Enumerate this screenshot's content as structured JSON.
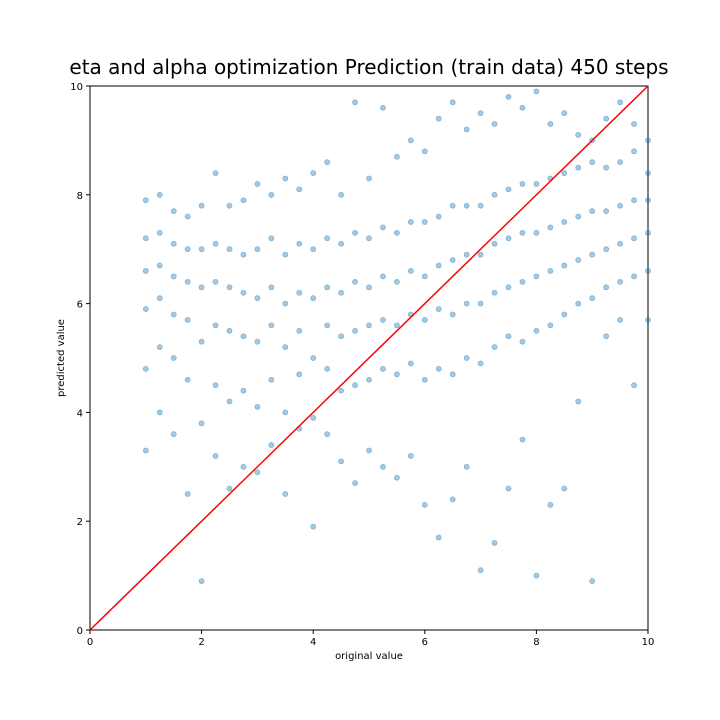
{
  "chart_data": {
    "type": "scatter",
    "title": "eta and alpha optimization Prediction (train data) 450 steps",
    "x_label": "original value",
    "y_label": "predicted value",
    "xlim": [
      0,
      10
    ],
    "ylim": [
      0,
      10
    ],
    "xticks": [
      0,
      2,
      4,
      6,
      8,
      10
    ],
    "yticks": [
      0,
      2,
      4,
      6,
      8,
      10
    ],
    "series": [
      {
        "type": "scatter",
        "color": "#1f77b4",
        "x": [
          1,
          1,
          1,
          1,
          1,
          1,
          1.25,
          1.25,
          1.25,
          1.25,
          1.25,
          1.25,
          1.5,
          1.5,
          1.5,
          1.5,
          1.5,
          1.5,
          1.75,
          1.75,
          1.75,
          1.75,
          1.75,
          1.75,
          2,
          2,
          2,
          2,
          2,
          2,
          2.25,
          2.25,
          2.25,
          2.25,
          2.25,
          2.25,
          2.5,
          2.5,
          2.5,
          2.5,
          2.5,
          2.5,
          2.75,
          2.75,
          2.75,
          2.75,
          2.75,
          2.75,
          3,
          3,
          3,
          3,
          3,
          3,
          3.25,
          3.25,
          3.25,
          3.25,
          3.25,
          3.25,
          3.5,
          3.5,
          3.5,
          3.5,
          3.5,
          3.5,
          3.75,
          3.75,
          3.75,
          3.75,
          3.75,
          3.75,
          4,
          4,
          4,
          4,
          4,
          4,
          4.25,
          4.25,
          4.25,
          4.25,
          4.25,
          4.25,
          4.5,
          4.5,
          4.5,
          4.5,
          4.5,
          4.5,
          4.75,
          4.75,
          4.75,
          4.75,
          4.75,
          4.75,
          5,
          5,
          5,
          5,
          5,
          5,
          5.25,
          5.25,
          5.25,
          5.25,
          5.25,
          5.25,
          5.5,
          5.5,
          5.5,
          5.5,
          5.5,
          5.5,
          5.75,
          5.75,
          5.75,
          5.75,
          5.75,
          5.75,
          6,
          6,
          6,
          6,
          6,
          6,
          6.25,
          6.25,
          6.25,
          6.25,
          6.25,
          6.25,
          6.5,
          6.5,
          6.5,
          6.5,
          6.5,
          6.5,
          6.75,
          6.75,
          6.75,
          6.75,
          6.75,
          6.75,
          7,
          7,
          7,
          7,
          7,
          7,
          7.25,
          7.25,
          7.25,
          7.25,
          7.25,
          7.25,
          7.5,
          7.5,
          7.5,
          7.5,
          7.5,
          7.5,
          7.75,
          7.75,
          7.75,
          7.75,
          7.75,
          7.75,
          8,
          8,
          8,
          8,
          8,
          8,
          8.25,
          8.25,
          8.25,
          8.25,
          8.25,
          8.25,
          8.5,
          8.5,
          8.5,
          8.5,
          8.5,
          8.5,
          8.75,
          8.75,
          8.75,
          8.75,
          8.75,
          8.75,
          9,
          9,
          9,
          9,
          9,
          9,
          9.25,
          9.25,
          9.25,
          9.25,
          9.25,
          9.25,
          9.5,
          9.5,
          9.5,
          9.5,
          9.5,
          9.5,
          9.75,
          9.75,
          9.75,
          9.75,
          9.75,
          9.75,
          10,
          10,
          10,
          10,
          10,
          10
        ],
        "values": [
          3.3,
          4.8,
          5.9,
          6.6,
          7.2,
          7.9,
          4.0,
          5.2,
          6.1,
          6.7,
          7.3,
          8.0,
          3.6,
          5.0,
          5.8,
          6.5,
          7.1,
          7.7,
          2.5,
          4.6,
          5.7,
          6.4,
          7.0,
          7.6,
          0.9,
          3.8,
          5.3,
          6.3,
          7.0,
          7.8,
          3.2,
          4.5,
          5.6,
          6.4,
          7.1,
          8.4,
          2.6,
          4.2,
          5.5,
          6.3,
          7.0,
          7.8,
          3.0,
          4.4,
          5.4,
          6.2,
          6.9,
          7.9,
          2.9,
          4.1,
          5.3,
          6.1,
          7.0,
          8.2,
          3.4,
          4.6,
          5.6,
          6.3,
          7.2,
          8.0,
          2.5,
          4.0,
          5.2,
          6.0,
          6.9,
          8.3,
          3.7,
          4.7,
          5.5,
          6.2,
          7.1,
          8.1,
          1.9,
          3.9,
          5.0,
          6.1,
          7.0,
          8.4,
          3.6,
          4.8,
          5.6,
          6.3,
          7.2,
          8.6,
          3.1,
          4.4,
          5.4,
          6.2,
          7.1,
          8.0,
          2.7,
          4.5,
          5.5,
          6.4,
          7.3,
          9.7,
          3.3,
          4.6,
          5.6,
          6.3,
          7.2,
          8.3,
          3.0,
          4.8,
          5.7,
          6.5,
          7.4,
          9.6,
          2.8,
          4.7,
          5.6,
          6.4,
          7.3,
          8.7,
          3.2,
          4.9,
          5.8,
          6.6,
          7.5,
          9.0,
          2.3,
          4.6,
          5.7,
          6.5,
          7.5,
          8.8,
          1.7,
          4.8,
          5.9,
          6.7,
          7.6,
          9.4,
          2.4,
          4.7,
          5.8,
          6.8,
          7.8,
          9.7,
          3.0,
          5.0,
          6.0,
          6.9,
          7.8,
          9.2,
          1.1,
          4.9,
          6.0,
          6.9,
          7.8,
          9.5,
          1.6,
          5.2,
          6.2,
          7.1,
          8.0,
          9.3,
          2.6,
          5.4,
          6.3,
          7.2,
          8.1,
          9.8,
          3.5,
          5.3,
          6.4,
          7.3,
          8.2,
          9.6,
          1.0,
          5.5,
          6.5,
          7.3,
          8.2,
          9.9,
          2.3,
          5.6,
          6.6,
          7.4,
          8.3,
          9.3,
          2.6,
          5.8,
          6.7,
          7.5,
          8.4,
          9.5,
          4.2,
          6.0,
          6.8,
          7.6,
          8.5,
          9.1,
          0.9,
          6.1,
          6.9,
          7.7,
          8.6,
          9.0,
          5.4,
          6.3,
          7.0,
          7.7,
          8.5,
          9.4,
          5.7,
          6.4,
          7.1,
          7.8,
          8.6,
          9.7,
          4.5,
          6.5,
          7.2,
          7.9,
          8.8,
          9.3,
          5.7,
          6.6,
          7.3,
          7.9,
          8.4,
          9.0
        ]
      },
      {
        "type": "line",
        "color": "red",
        "x": [
          0,
          10
        ],
        "values": [
          0,
          10
        ]
      }
    ]
  }
}
